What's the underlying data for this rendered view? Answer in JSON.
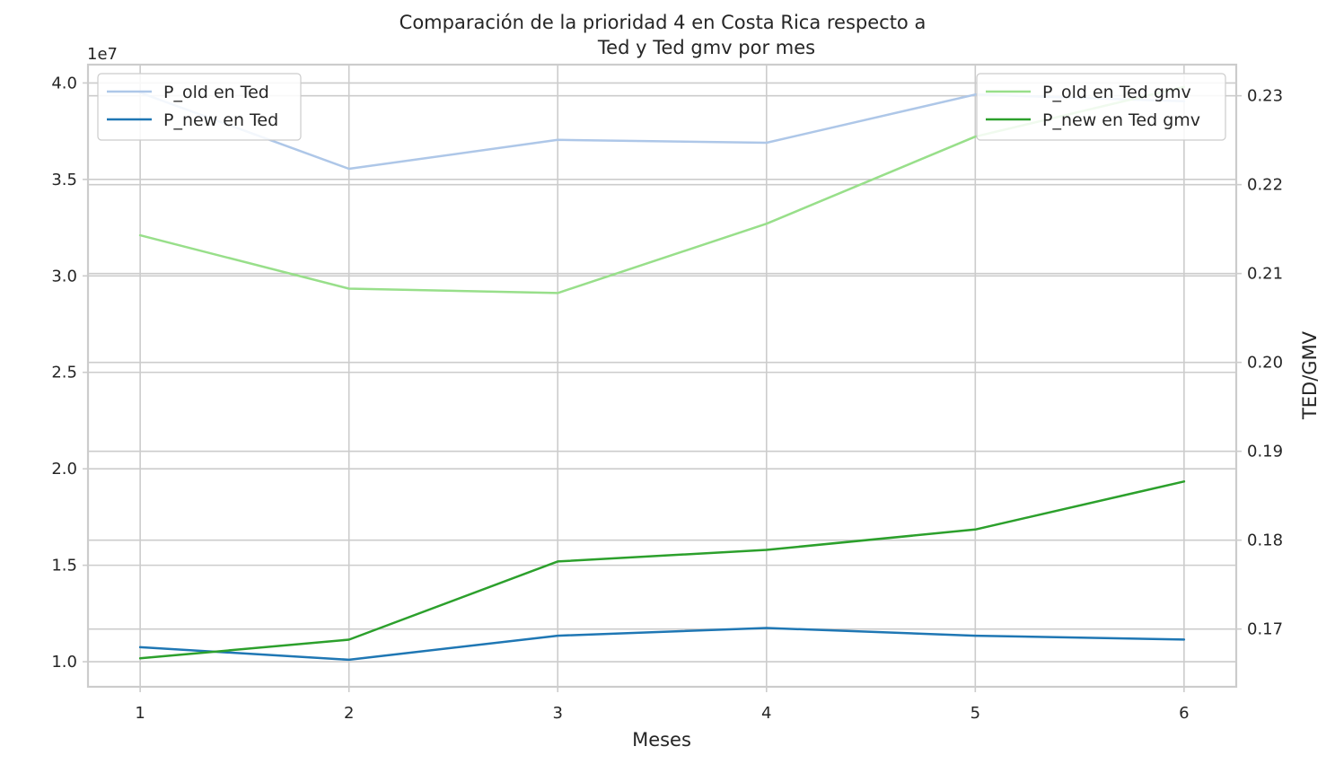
{
  "chart_data": {
    "type": "line",
    "title_lines": [
      "Comparación de la prioridad 4 en Costa Rica respecto a",
      "Ted y Ted gmv por mes"
    ],
    "xlabel": "Meses",
    "ylabel_left": "",
    "ylabel_right": "TED/GMV",
    "left_offset_label": "1e7",
    "x": [
      1,
      2,
      3,
      4,
      5,
      6
    ],
    "xlim": [
      0.75,
      6.25
    ],
    "x_ticks": [
      "1",
      "2",
      "3",
      "4",
      "5",
      "6"
    ],
    "left_axis": {
      "ylim": [
        0.87,
        4.095
      ],
      "ticks": [
        1.0,
        1.5,
        2.0,
        2.5,
        3.0,
        3.5,
        4.0
      ],
      "tick_labels": [
        "1.0",
        "1.5",
        "2.0",
        "2.5",
        "3.0",
        "3.5",
        "4.0"
      ]
    },
    "right_axis": {
      "ylim": [
        0.1635,
        0.2335
      ],
      "ticks": [
        0.17,
        0.18,
        0.19,
        0.2,
        0.21,
        0.22,
        0.23
      ],
      "tick_labels": [
        "0.17",
        "0.18",
        "0.19",
        "0.20",
        "0.21",
        "0.22",
        "0.23"
      ]
    },
    "series_left": [
      {
        "name": "P_old en Ted",
        "color": "#aec7e8",
        "values": [
          3.95,
          3.555,
          3.705,
          3.69,
          3.94,
          3.905
        ]
      },
      {
        "name": "P_new en Ted",
        "color": "#1f77b4",
        "values": [
          1.075,
          1.01,
          1.135,
          1.175,
          1.135,
          1.115
        ]
      }
    ],
    "series_right": [
      {
        "name": "P_old en Ted gmv",
        "color": "#98df8a",
        "values": [
          0.2143,
          0.2083,
          0.2078,
          0.2156,
          0.2254,
          0.231
        ]
      },
      {
        "name": "P_new en Ted gmv",
        "color": "#2ca02c",
        "values": [
          0.1667,
          0.1688,
          0.1776,
          0.1789,
          0.1812,
          0.1866
        ]
      }
    ],
    "legend_left_placement": "upper-left",
    "legend_right_placement": "upper-right",
    "grid": true
  }
}
